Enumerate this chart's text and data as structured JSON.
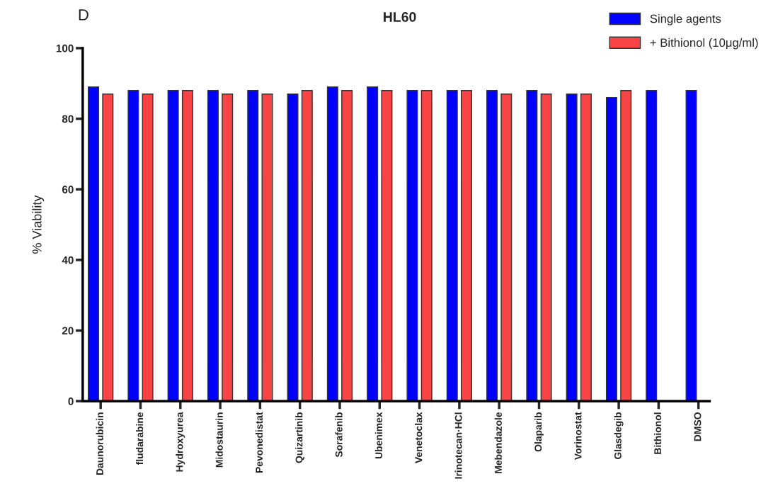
{
  "chart_data": {
    "type": "bar",
    "title": "HL60",
    "ylabel": "% Viability",
    "annotations": [
      "D"
    ],
    "categories": [
      "Daunorubicin",
      "fludarabine",
      "Hydroxyurea",
      "Midostaurin",
      "Pevonedistat",
      "Quizartinib",
      "Sorafenib",
      "Ubenimex",
      "Venetoclax",
      "Irinotecan·HCl",
      "Mebendazole",
      "Olaparib",
      "Vorinostat",
      "Glasdegib",
      "Bithionol",
      "DMSO"
    ],
    "series": [
      {
        "name": "Single agents",
        "color": "#0000ff",
        "values": [
          89,
          88,
          88,
          88,
          88,
          87,
          89,
          89,
          88,
          88,
          88,
          88,
          87,
          86,
          88,
          88
        ]
      },
      {
        "name": "+ Bithionol (10μg/ml)",
        "color": "#f84444",
        "values": [
          87,
          87,
          88,
          87,
          87,
          88,
          88,
          88,
          88,
          88,
          87,
          87,
          87,
          88,
          null,
          null
        ]
      }
    ],
    "ylim": [
      0,
      100
    ],
    "yticks": [
      0,
      20,
      40,
      60,
      80,
      100
    ],
    "legend": "top right"
  }
}
